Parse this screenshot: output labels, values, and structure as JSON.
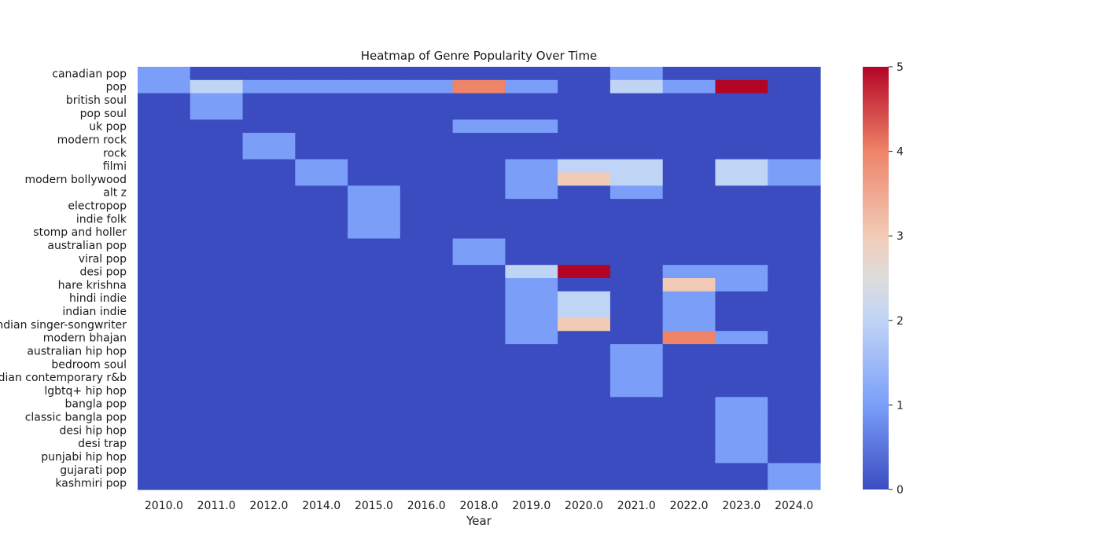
{
  "chart_data": {
    "type": "heatmap",
    "title": "Heatmap of Genre Popularity Over Time",
    "xlabel": "Year",
    "ylabel": "",
    "x_categories": [
      "2010.0",
      "2011.0",
      "2012.0",
      "2014.0",
      "2015.0",
      "2016.0",
      "2018.0",
      "2019.0",
      "2020.0",
      "2021.0",
      "2022.0",
      "2023.0",
      "2024.0"
    ],
    "y_categories": [
      "canadian pop",
      "pop",
      "british soul",
      "pop soul",
      "uk pop",
      "modern rock",
      "rock",
      "filmi",
      "modern bollywood",
      "alt z",
      "electropop",
      "indie folk",
      "stomp and holler",
      "australian pop",
      "viral pop",
      "desi pop",
      "hare krishna",
      "hindi indie",
      "indian indie",
      "indian singer-songwriter",
      "modern bhajan",
      "australian hip hop",
      "bedroom soul",
      "canadian contemporary r&b",
      "lgbtq+ hip hop",
      "bangla pop",
      "classic bangla pop",
      "desi hip hop",
      "desi trap",
      "punjabi hip hop",
      "gujarati pop",
      "kashmiri pop"
    ],
    "values": [
      [
        1,
        0,
        0,
        0,
        0,
        0,
        0,
        0,
        0,
        1,
        0,
        0,
        0
      ],
      [
        1,
        2,
        1,
        1,
        1,
        1,
        4,
        1,
        0,
        2,
        1,
        5,
        0
      ],
      [
        0,
        1,
        0,
        0,
        0,
        0,
        0,
        0,
        0,
        0,
        0,
        0,
        0
      ],
      [
        0,
        1,
        0,
        0,
        0,
        0,
        0,
        0,
        0,
        0,
        0,
        0,
        0
      ],
      [
        0,
        0,
        0,
        0,
        0,
        0,
        1,
        1,
        0,
        0,
        0,
        0,
        0
      ],
      [
        0,
        0,
        1,
        0,
        0,
        0,
        0,
        0,
        0,
        0,
        0,
        0,
        0
      ],
      [
        0,
        0,
        1,
        0,
        0,
        0,
        0,
        0,
        0,
        0,
        0,
        0,
        0
      ],
      [
        0,
        0,
        0,
        1,
        0,
        0,
        0,
        1,
        2,
        2,
        0,
        2,
        1
      ],
      [
        0,
        0,
        0,
        1,
        0,
        0,
        0,
        1,
        3,
        2,
        0,
        2,
        1
      ],
      [
        0,
        0,
        0,
        0,
        1,
        0,
        0,
        1,
        0,
        1,
        0,
        0,
        0
      ],
      [
        0,
        0,
        0,
        0,
        1,
        0,
        0,
        0,
        0,
        0,
        0,
        0,
        0
      ],
      [
        0,
        0,
        0,
        0,
        1,
        0,
        0,
        0,
        0,
        0,
        0,
        0,
        0
      ],
      [
        0,
        0,
        0,
        0,
        1,
        0,
        0,
        0,
        0,
        0,
        0,
        0,
        0
      ],
      [
        0,
        0,
        0,
        0,
        0,
        0,
        1,
        0,
        0,
        0,
        0,
        0,
        0
      ],
      [
        0,
        0,
        0,
        0,
        0,
        0,
        1,
        0,
        0,
        0,
        0,
        0,
        0
      ],
      [
        0,
        0,
        0,
        0,
        0,
        0,
        0,
        2,
        5,
        0,
        1,
        1,
        0
      ],
      [
        0,
        0,
        0,
        0,
        0,
        0,
        0,
        1,
        0,
        0,
        3,
        1,
        0
      ],
      [
        0,
        0,
        0,
        0,
        0,
        0,
        0,
        1,
        2,
        0,
        1,
        0,
        0
      ],
      [
        0,
        0,
        0,
        0,
        0,
        0,
        0,
        1,
        2,
        0,
        1,
        0,
        0
      ],
      [
        0,
        0,
        0,
        0,
        0,
        0,
        0,
        1,
        3,
        0,
        1,
        0,
        0
      ],
      [
        0,
        0,
        0,
        0,
        0,
        0,
        0,
        1,
        0,
        0,
        4,
        1,
        0
      ],
      [
        0,
        0,
        0,
        0,
        0,
        0,
        0,
        0,
        0,
        1,
        0,
        0,
        0
      ],
      [
        0,
        0,
        0,
        0,
        0,
        0,
        0,
        0,
        0,
        1,
        0,
        0,
        0
      ],
      [
        0,
        0,
        0,
        0,
        0,
        0,
        0,
        0,
        0,
        1,
        0,
        0,
        0
      ],
      [
        0,
        0,
        0,
        0,
        0,
        0,
        0,
        0,
        0,
        1,
        0,
        0,
        0
      ],
      [
        0,
        0,
        0,
        0,
        0,
        0,
        0,
        0,
        0,
        0,
        0,
        1,
        0
      ],
      [
        0,
        0,
        0,
        0,
        0,
        0,
        0,
        0,
        0,
        0,
        0,
        1,
        0
      ],
      [
        0,
        0,
        0,
        0,
        0,
        0,
        0,
        0,
        0,
        0,
        0,
        1,
        0
      ],
      [
        0,
        0,
        0,
        0,
        0,
        0,
        0,
        0,
        0,
        0,
        0,
        1,
        0
      ],
      [
        0,
        0,
        0,
        0,
        0,
        0,
        0,
        0,
        0,
        0,
        0,
        1,
        0
      ],
      [
        0,
        0,
        0,
        0,
        0,
        0,
        0,
        0,
        0,
        0,
        0,
        0,
        1
      ],
      [
        0,
        0,
        0,
        0,
        0,
        0,
        0,
        0,
        0,
        0,
        0,
        0,
        1
      ]
    ],
    "colorbar": {
      "colormap": "coolwarm",
      "range": [
        0,
        5
      ],
      "ticks": [
        "0",
        "1",
        "2",
        "3",
        "4",
        "5"
      ]
    },
    "colormap_stops": [
      [
        0.0,
        "#3b4cc0"
      ],
      [
        0.2,
        "#7b9ff9"
      ],
      [
        0.4,
        "#c0d4f5"
      ],
      [
        0.5,
        "#dddcdc"
      ],
      [
        0.6,
        "#f2cbb7"
      ],
      [
        0.8,
        "#ee8468"
      ],
      [
        1.0,
        "#b40426"
      ]
    ]
  }
}
